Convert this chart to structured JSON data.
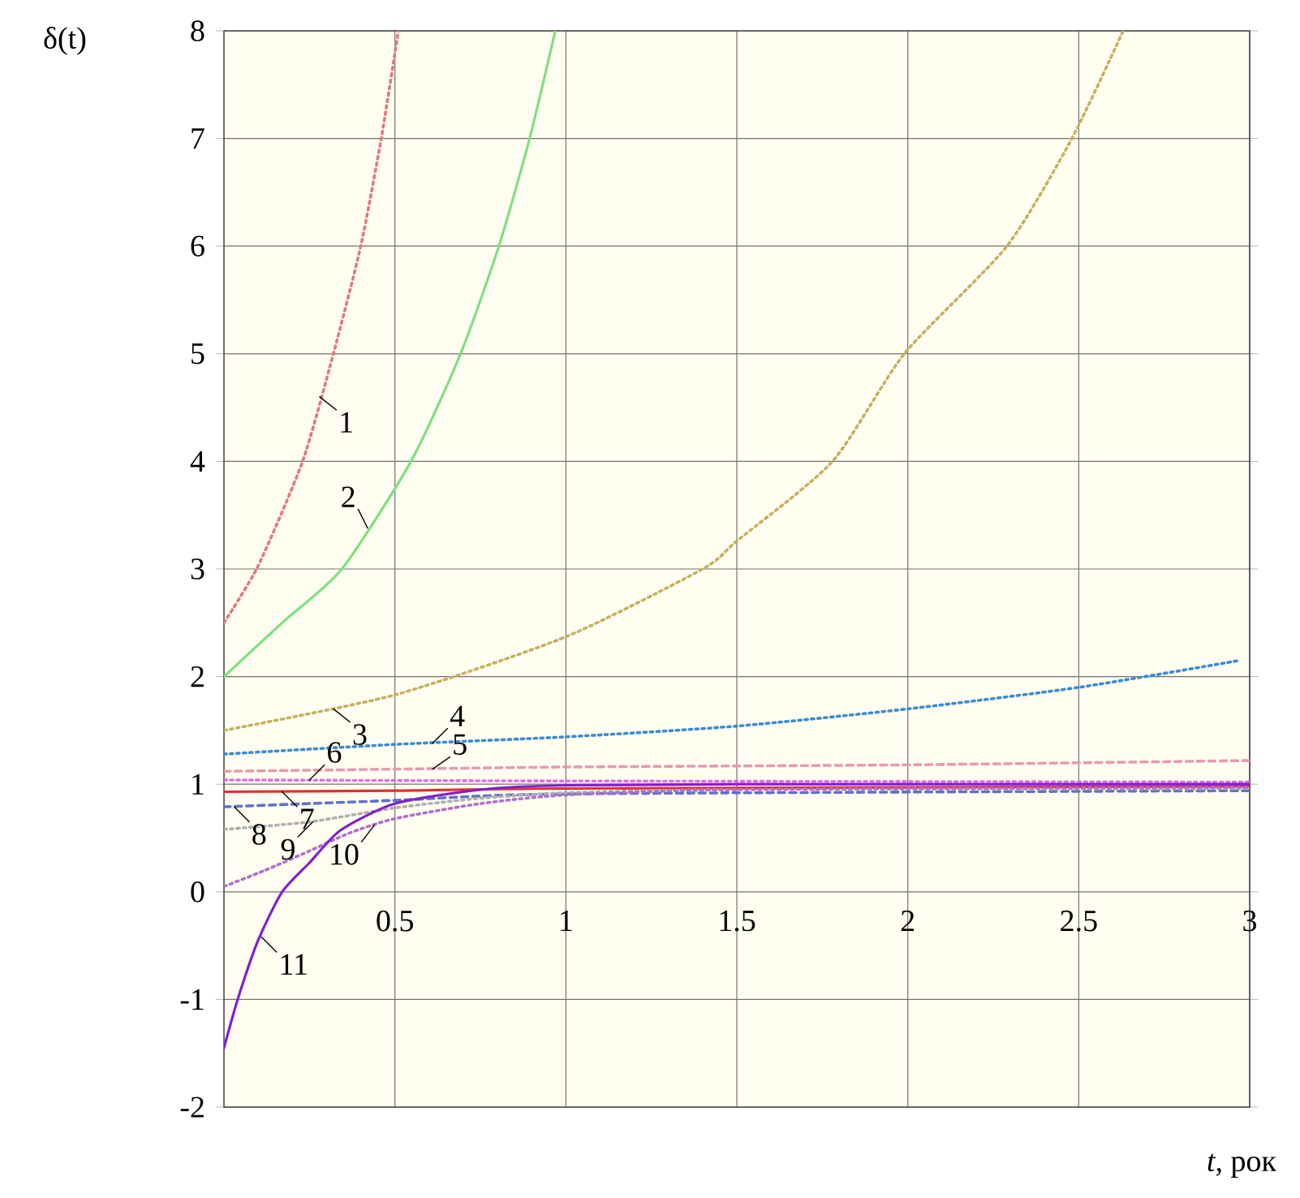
{
  "chart_data": {
    "type": "line",
    "xlabel": "*t*, рок",
    "ylabel": "δ(t)",
    "xlim": [
      0,
      3
    ],
    "ylim": [
      -2,
      8
    ],
    "xticks": [
      0.5,
      1,
      1.5,
      2,
      2.5,
      3
    ],
    "yticks": [
      -2,
      -1,
      0,
      1,
      2,
      3,
      4,
      5,
      6,
      7,
      8
    ],
    "grid": true,
    "series": [
      {
        "color": "#e07a80",
        "line_style": "dotted",
        "x": [
          0,
          0.1,
          0.23,
          0.32,
          0.4,
          0.46,
          0.51
        ],
        "values": [
          2.5,
          3.03,
          4,
          5,
          6,
          7,
          8
        ]
      },
      {
        "color": "#7fe07f",
        "line_style": "solid",
        "x": [
          0,
          0.17,
          0.345,
          0.547,
          0.692,
          0.804,
          0.894,
          0.969
        ],
        "values": [
          2,
          2.5,
          3,
          4,
          5,
          6,
          7,
          8
        ]
      },
      {
        "color": "#c8b060",
        "line_style": "dotted",
        "x": [
          0,
          0.5,
          1,
          1.4,
          1.5,
          1.78,
          1.99,
          2.29,
          2.48,
          2.63
        ],
        "values": [
          1.5,
          1.83,
          2.37,
          3,
          3.26,
          4,
          5,
          6,
          7,
          8
        ]
      },
      {
        "color": "#3a8ad8",
        "line_style": "dotted",
        "x": [
          0,
          0.5,
          1,
          1.5,
          2,
          2.5,
          2.97
        ],
        "values": [
          1.28,
          1.37,
          1.44,
          1.54,
          1.7,
          1.9,
          2.15
        ]
      },
      {
        "color": "#e89ab0",
        "line_style": "dashed",
        "x": [
          0,
          0.5,
          1,
          2,
          3
        ],
        "values": [
          1.12,
          1.14,
          1.16,
          1.18,
          1.22
        ]
      },
      {
        "color": "#e070e0",
        "line_style": "dotted",
        "x": [
          0,
          1,
          3
        ],
        "values": [
          1.04,
          1.03,
          1.02
        ]
      },
      {
        "color": "#e03030",
        "line_style": "solid",
        "x": [
          0,
          0.5,
          1,
          3
        ],
        "values": [
          0.93,
          0.94,
          0.96,
          0.98
        ]
      },
      {
        "color": "#6070d0",
        "line_style": "dashed",
        "x": [
          0,
          0.5,
          1,
          3
        ],
        "values": [
          0.79,
          0.85,
          0.91,
          0.94
        ]
      },
      {
        "color": "#b0b0b0",
        "line_style": "dotted",
        "x": [
          0,
          0.25,
          0.5,
          0.75,
          1,
          1.5,
          3
        ],
        "values": [
          0.58,
          0.65,
          0.78,
          0.87,
          0.92,
          0.95,
          0.96
        ]
      },
      {
        "color": "#b070d0",
        "line_style": "dotted",
        "x": [
          0,
          0.12,
          0.25,
          0.37,
          0.5,
          0.75,
          1,
          1.5,
          3
        ],
        "values": [
          0.05,
          0.2,
          0.38,
          0.55,
          0.68,
          0.82,
          0.9,
          0.95,
          0.97
        ]
      },
      {
        "color": "#8020d0",
        "line_style": "solid",
        "x": [
          0,
          0.04,
          0.1,
          0.17,
          0.25,
          0.34,
          0.5,
          0.75,
          1,
          1.5,
          3
        ],
        "values": [
          -1.45,
          -1,
          -0.45,
          0,
          0.27,
          0.57,
          0.82,
          0.95,
          0.99,
          1,
          1
        ]
      }
    ],
    "annotations": [
      {
        "text": "1",
        "x": 0.28,
        "y": 4.6
      },
      {
        "text": "2",
        "x": 0.42,
        "y": 3.38
      },
      {
        "text": "3",
        "x": 0.32,
        "y": 1.7
      },
      {
        "text": "4",
        "x": 0.61,
        "y": 1.38
      },
      {
        "text": "5",
        "x": 0.61,
        "y": 1.14
      },
      {
        "text": "6",
        "x": 0.25,
        "y": 1.04
      },
      {
        "text": "7",
        "x": 0.17,
        "y": 0.93
      },
      {
        "text": "8",
        "x": 0.03,
        "y": 0.79
      },
      {
        "text": "9",
        "x": 0.26,
        "y": 0.65
      },
      {
        "text": "10",
        "x": 0.44,
        "y": 0.62
      },
      {
        "text": "11",
        "x": 0.11,
        "y": -0.42
      }
    ]
  }
}
